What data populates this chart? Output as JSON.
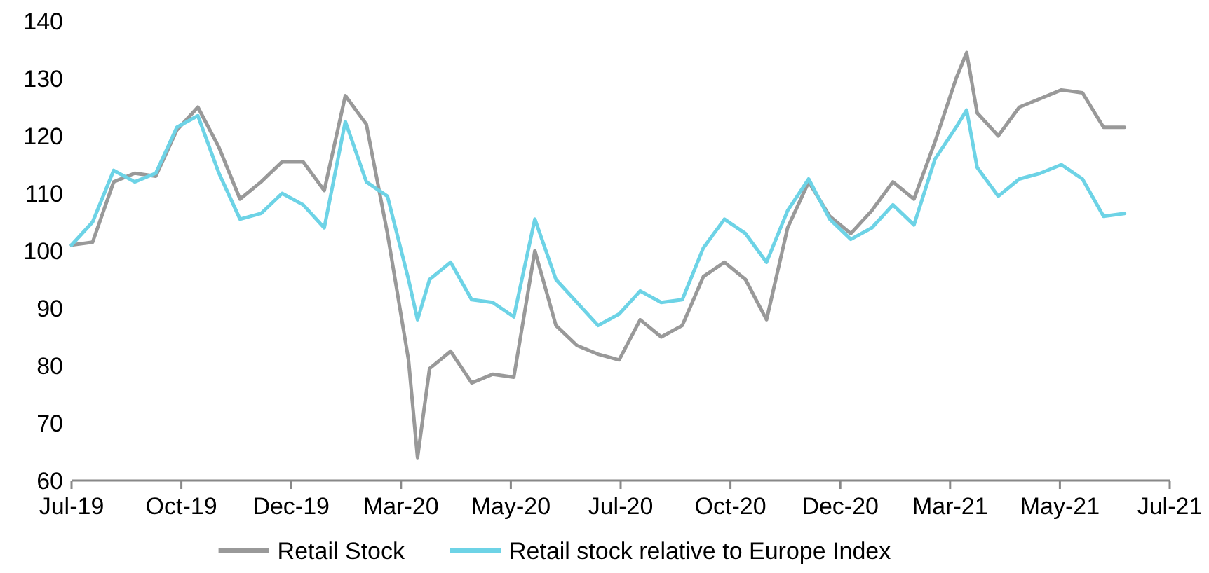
{
  "chart_data": {
    "type": "line",
    "x": [
      "2019-07-28",
      "2019-08-11",
      "2019-08-25",
      "2019-09-08",
      "2019-09-22",
      "2019-10-06",
      "2019-10-20",
      "2019-11-03",
      "2019-11-17",
      "2019-12-01",
      "2019-12-15",
      "2019-12-29",
      "2020-01-12",
      "2020-01-26",
      "2020-02-09",
      "2020-02-23",
      "2020-03-08",
      "2020-03-14",
      "2020-03-22",
      "2020-04-05",
      "2020-04-19",
      "2020-05-03",
      "2020-05-17",
      "2020-05-31",
      "2020-06-14",
      "2020-06-28",
      "2020-07-12",
      "2020-07-26",
      "2020-08-09",
      "2020-08-23",
      "2020-09-06",
      "2020-09-20",
      "2020-10-04",
      "2020-10-18",
      "2020-11-01",
      "2020-11-15",
      "2020-11-29",
      "2020-12-13",
      "2020-12-27",
      "2021-01-10",
      "2021-01-24",
      "2021-02-07",
      "2021-02-21",
      "2021-03-07",
      "2021-03-14",
      "2021-03-21",
      "2021-04-04",
      "2021-04-18",
      "2021-05-02",
      "2021-05-16",
      "2021-05-30",
      "2021-06-13",
      "2021-06-27"
    ],
    "series": [
      {
        "name": "Retail Stock",
        "color": "#999999",
        "values": [
          101,
          101.5,
          112,
          113.5,
          113,
          121,
          125,
          118,
          109,
          112,
          115.5,
          115.5,
          110.5,
          127,
          122,
          103,
          81,
          64,
          79.5,
          82.5,
          77,
          78.5,
          78,
          100,
          87,
          83.5,
          82,
          81,
          88,
          85,
          87,
          95.5,
          98,
          95,
          88,
          104,
          112,
          106,
          103,
          107,
          112,
          109,
          119,
          130,
          134.5,
          124,
          120,
          125,
          126.5,
          128,
          127.5,
          121.5,
          121.5
        ]
      },
      {
        "name": "Retail stock relative to Europe Index",
        "color": "#6dd3e6",
        "values": [
          101,
          105,
          114,
          112,
          113.5,
          121.5,
          123.5,
          113.5,
          105.5,
          106.5,
          110,
          108,
          104,
          122.5,
          112,
          109.5,
          95,
          88,
          95,
          98,
          91.5,
          91,
          88.5,
          105.5,
          95,
          91,
          87,
          89,
          93,
          91,
          91.5,
          100.5,
          105.5,
          103,
          98,
          107,
          112.5,
          105.5,
          102,
          104,
          108,
          104.5,
          116,
          121.5,
          124.5,
          114.5,
          109.5,
          112.5,
          113.5,
          115,
          112.5,
          106,
          106.5
        ]
      }
    ],
    "xlim": [
      "2019-07-28",
      "2021-07-27"
    ],
    "xticks": [
      {
        "value": "2019-07-28",
        "label": "Jul-19"
      },
      {
        "value": "2019-10-09",
        "label": "Oct-19"
      },
      {
        "value": "2019-12-21",
        "label": "Dec-19"
      },
      {
        "value": "2020-03-03",
        "label": "Mar-20"
      },
      {
        "value": "2020-05-15",
        "label": "May-20"
      },
      {
        "value": "2020-07-27",
        "label": "Jul-20"
      },
      {
        "value": "2020-10-08",
        "label": "Oct-20"
      },
      {
        "value": "2020-12-20",
        "label": "Dec-20"
      },
      {
        "value": "2021-03-03",
        "label": "Mar-21"
      },
      {
        "value": "2021-05-15",
        "label": "May-21"
      },
      {
        "value": "2021-07-27",
        "label": "Jul-21"
      }
    ],
    "ylim": [
      60,
      140
    ],
    "yticks": [
      60,
      70,
      80,
      90,
      100,
      110,
      120,
      130,
      140
    ],
    "grid": false,
    "legend": "bottom",
    "marker": "none",
    "line_style": "solid"
  }
}
